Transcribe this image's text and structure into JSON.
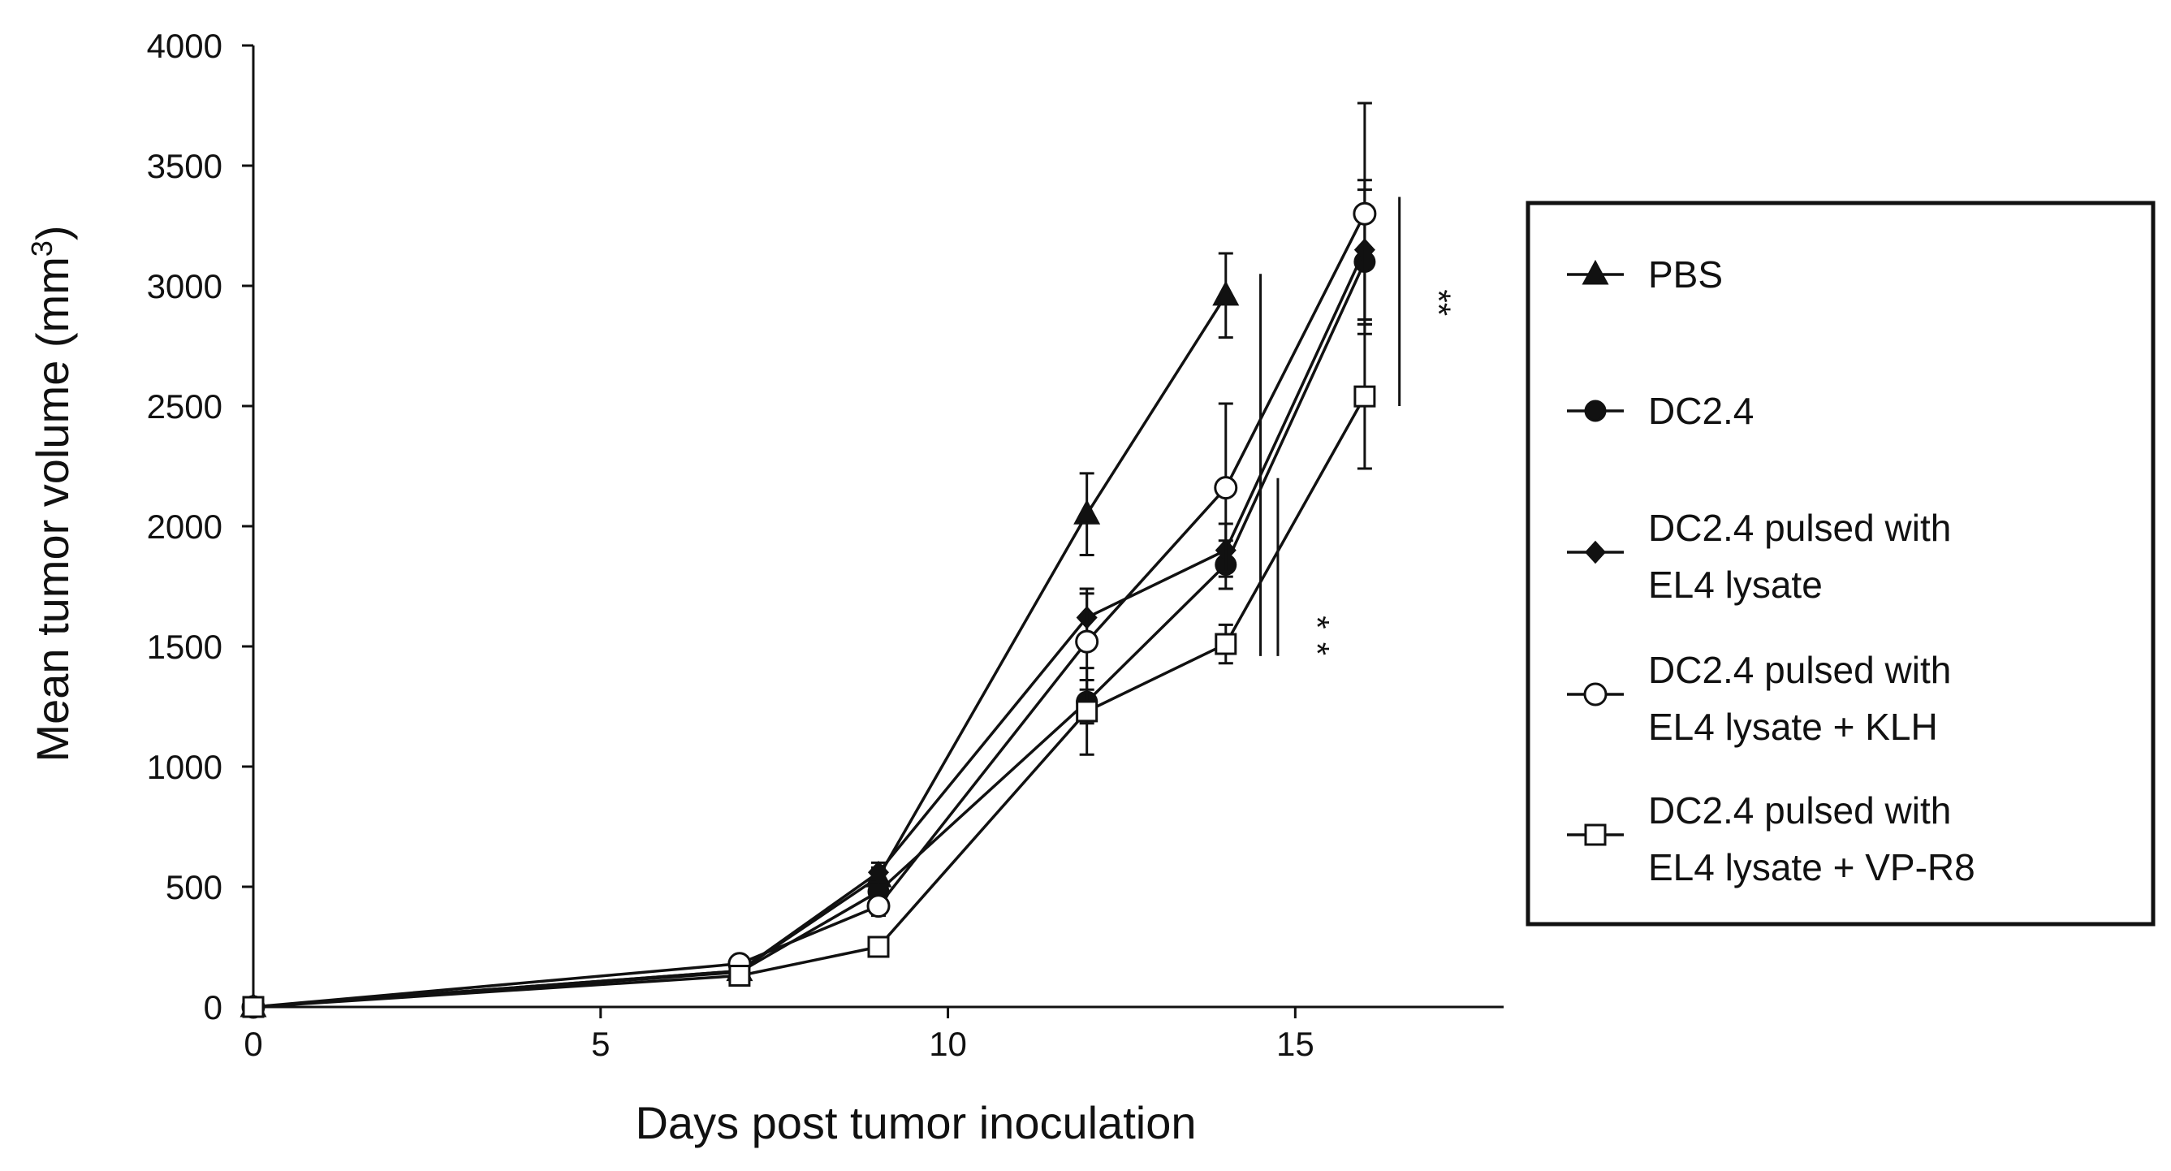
{
  "chart_data": {
    "type": "line",
    "xlabel": "Days post tumor inoculation",
    "ylabel_main": "Mean tumor volume (mm",
    "ylabel_sup": "3",
    "ylabel_tail": ")",
    "xlim": [
      0,
      18
    ],
    "ylim": [
      0,
      4000
    ],
    "xticks": [
      0,
      5,
      10,
      15
    ],
    "yticks": [
      0,
      500,
      1000,
      1500,
      2000,
      2500,
      3000,
      3500,
      4000
    ],
    "grid": false,
    "legend_position": "right",
    "series": [
      {
        "name": "PBS",
        "marker": "filled-triangle",
        "x": [
          0,
          7,
          9,
          12,
          14
        ],
        "y": [
          0,
          150,
          540,
          2050,
          2960
        ],
        "err": [
          0,
          20,
          40,
          170,
          175
        ]
      },
      {
        "name": "DC2.4",
        "marker": "filled-circle",
        "x": [
          0,
          7,
          9,
          12,
          14,
          16
        ],
        "y": [
          0,
          145,
          480,
          1270,
          1840,
          3100
        ],
        "err": [
          0,
          20,
          40,
          90,
          100,
          300
        ]
      },
      {
        "name": "DC2.4 pulsed with\nEL4 lysate",
        "marker": "filled-diamond",
        "x": [
          0,
          7,
          9,
          12,
          14,
          16
        ],
        "y": [
          0,
          150,
          560,
          1620,
          1900,
          3150
        ],
        "err": [
          0,
          20,
          40,
          120,
          110,
          290
        ]
      },
      {
        "name": "DC2.4 pulsed with\nEL4 lysate + KLH",
        "marker": "open-circle",
        "x": [
          0,
          7,
          9,
          12,
          14,
          16
        ],
        "y": [
          0,
          180,
          420,
          1520,
          2160,
          3300
        ],
        "err": [
          0,
          20,
          40,
          200,
          350,
          460
        ]
      },
      {
        "name": "DC2.4 pulsed with\nEL4 lysate + VP-R8",
        "marker": "open-square",
        "x": [
          0,
          7,
          9,
          12,
          14,
          16
        ],
        "y": [
          0,
          130,
          250,
          1230,
          1510,
          2540
        ],
        "err": [
          0,
          20,
          30,
          180,
          80,
          300
        ]
      }
    ],
    "annotations": [
      {
        "label": "*",
        "x1": 14.5,
        "y1": 3050,
        "y2": 1460
      },
      {
        "label": "*",
        "x1": 14.75,
        "y1": 2200,
        "y2": 1460
      },
      {
        "label": "**",
        "x1": 16.5,
        "y1": 3370,
        "y2": 2500
      }
    ]
  }
}
